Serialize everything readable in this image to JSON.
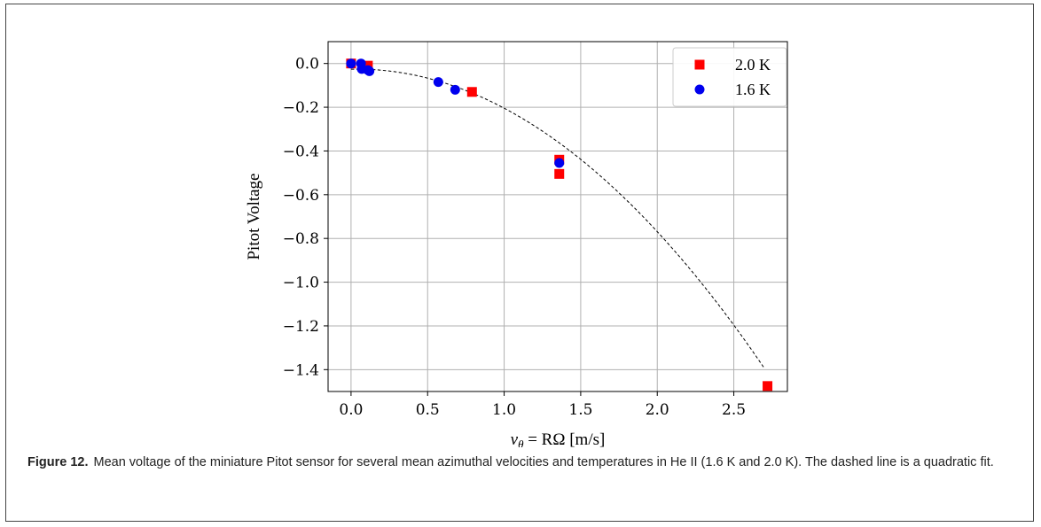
{
  "chart_data": {
    "type": "scatter",
    "xlabel_prefix": "v",
    "xlabel_sub": "θ",
    "xlabel_rest": " = RΩ [m/s]",
    "ylabel": "Pitot Voltage",
    "xlim": [
      -0.15,
      2.85
    ],
    "ylim": [
      -1.5,
      0.1
    ],
    "xticks": [
      0.0,
      0.5,
      1.0,
      1.5,
      2.0,
      2.5
    ],
    "xtick_labels": [
      "0.0",
      "0.5",
      "1.0",
      "1.5",
      "2.0",
      "2.5"
    ],
    "yticks": [
      0.0,
      -0.2,
      -0.4,
      -0.6,
      -0.8,
      -1.0,
      -1.2,
      -1.4
    ],
    "ytick_labels": [
      "0.0",
      "−0.2",
      "−0.4",
      "−0.6",
      "−0.8",
      "−1.0",
      "−1.2",
      "−1.4"
    ],
    "grid": true,
    "legend_position": "top-right",
    "series": [
      {
        "name": "2.0 K",
        "marker": "square",
        "color": "#ff0000",
        "points": [
          [
            0.0,
            0.0
          ],
          [
            0.11,
            -0.01
          ],
          [
            0.79,
            -0.13
          ],
          [
            1.36,
            -0.44
          ],
          [
            1.36,
            -0.505
          ],
          [
            2.72,
            -1.475
          ]
        ]
      },
      {
        "name": "1.6 K",
        "marker": "circle",
        "color": "#0000ee",
        "points": [
          [
            0.0,
            0.0
          ],
          [
            0.065,
            0.0
          ],
          [
            0.07,
            -0.025
          ],
          [
            0.11,
            -0.03
          ],
          [
            0.12,
            -0.035
          ],
          [
            0.57,
            -0.085
          ],
          [
            0.68,
            -0.12
          ],
          [
            1.36,
            -0.455
          ]
        ]
      }
    ],
    "fit": {
      "style": "dashed",
      "color": "#000000",
      "coefficients": [
        -0.0261,
        0.0149,
        -0.1932
      ],
      "x_range": [
        0.0,
        2.7
      ]
    }
  },
  "caption": {
    "label": "Figure 12.",
    "text": "Mean voltage of the miniature Pitot sensor for several mean azimuthal velocities and temperatures in He II (1.6 K and 2.0 K). The dashed line is a quadratic fit."
  }
}
